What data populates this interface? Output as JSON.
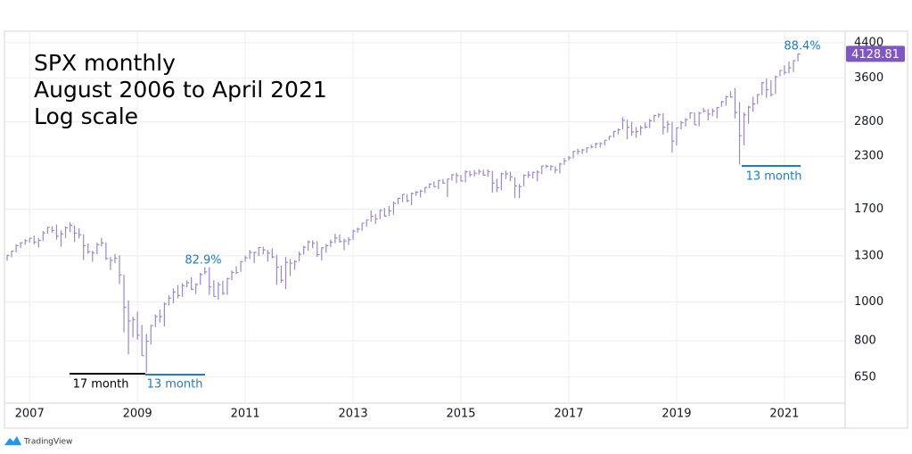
{
  "chart_data": {
    "type": "ohlc",
    "title_lines": [
      "SPX monthly",
      "August 2006 to April 2021",
      "Log scale"
    ],
    "categories": [
      "2006-08",
      "2006-09",
      "2006-10",
      "2006-11",
      "2006-12",
      "2007-01",
      "2007-02",
      "2007-03",
      "2007-04",
      "2007-05",
      "2007-06",
      "2007-07",
      "2007-08",
      "2007-09",
      "2007-10",
      "2007-11",
      "2007-12",
      "2008-01",
      "2008-02",
      "2008-03",
      "2008-04",
      "2008-05",
      "2008-06",
      "2008-07",
      "2008-08",
      "2008-09",
      "2008-10",
      "2008-11",
      "2008-12",
      "2009-01",
      "2009-02",
      "2009-03",
      "2009-04",
      "2009-05",
      "2009-06",
      "2009-07",
      "2009-08",
      "2009-09",
      "2009-10",
      "2009-11",
      "2009-12",
      "2010-01",
      "2010-02",
      "2010-03",
      "2010-04",
      "2010-05",
      "2010-06",
      "2010-07",
      "2010-08",
      "2010-09",
      "2010-10",
      "2010-11",
      "2010-12",
      "2011-01",
      "2011-02",
      "2011-03",
      "2011-04",
      "2011-05",
      "2011-06",
      "2011-07",
      "2011-08",
      "2011-09",
      "2011-10",
      "2011-11",
      "2011-12",
      "2012-01",
      "2012-02",
      "2012-03",
      "2012-04",
      "2012-05",
      "2012-06",
      "2012-07",
      "2012-08",
      "2012-09",
      "2012-10",
      "2012-11",
      "2012-12",
      "2013-01",
      "2013-02",
      "2013-03",
      "2013-04",
      "2013-05",
      "2013-06",
      "2013-07",
      "2013-08",
      "2013-09",
      "2013-10",
      "2013-11",
      "2013-12",
      "2014-01",
      "2014-02",
      "2014-03",
      "2014-04",
      "2014-05",
      "2014-06",
      "2014-07",
      "2014-08",
      "2014-09",
      "2014-10",
      "2014-11",
      "2014-12",
      "2015-01",
      "2015-02",
      "2015-03",
      "2015-04",
      "2015-05",
      "2015-06",
      "2015-07",
      "2015-08",
      "2015-09",
      "2015-10",
      "2015-11",
      "2015-12",
      "2016-01",
      "2016-02",
      "2016-03",
      "2016-04",
      "2016-05",
      "2016-06",
      "2016-07",
      "2016-08",
      "2016-09",
      "2016-10",
      "2016-11",
      "2016-12",
      "2017-01",
      "2017-02",
      "2017-03",
      "2017-04",
      "2017-05",
      "2017-06",
      "2017-07",
      "2017-08",
      "2017-09",
      "2017-10",
      "2017-11",
      "2017-12",
      "2018-01",
      "2018-02",
      "2018-03",
      "2018-04",
      "2018-05",
      "2018-06",
      "2018-07",
      "2018-08",
      "2018-09",
      "2018-10",
      "2018-11",
      "2018-12",
      "2019-01",
      "2019-02",
      "2019-03",
      "2019-04",
      "2019-05",
      "2019-06",
      "2019-07",
      "2019-08",
      "2019-09",
      "2019-10",
      "2019-11",
      "2019-12",
      "2020-01",
      "2020-02",
      "2020-03",
      "2020-04",
      "2020-05",
      "2020-06",
      "2020-07",
      "2020-08",
      "2020-09",
      "2020-10",
      "2020-11",
      "2020-12",
      "2021-01",
      "2021-02",
      "2021-03",
      "2021-04"
    ],
    "high": [
      1306,
      1340,
      1390,
      1407,
      1431,
      1441,
      1461,
      1438,
      1499,
      1535,
      1541,
      1556,
      1504,
      1539,
      1576,
      1549,
      1523,
      1471,
      1396,
      1340,
      1404,
      1441,
      1404,
      1292,
      1314,
      1305,
      1167,
      1007,
      918,
      944,
      876,
      832,
      876,
      930,
      956,
      997,
      1039,
      1080,
      1101,
      1113,
      1130,
      1150,
      1112,
      1180,
      1220,
      1219,
      1131,
      1120,
      1129,
      1148,
      1196,
      1227,
      1263,
      1303,
      1345,
      1332,
      1367,
      1371,
      1346,
      1357,
      1308,
      1230,
      1293,
      1278,
      1270,
      1334,
      1378,
      1420,
      1422,
      1415,
      1364,
      1392,
      1427,
      1475,
      1470,
      1434,
      1448,
      1510,
      1530,
      1570,
      1598,
      1687,
      1654,
      1698,
      1710,
      1730,
      1775,
      1813,
      1849,
      1851,
      1867,
      1884,
      1897,
      1925,
      1968,
      1991,
      2005,
      2019,
      2019,
      2076,
      2093,
      2064,
      2120,
      2118,
      2126,
      2135,
      2130,
      2133,
      2113,
      2021,
      2094,
      2117,
      2104,
      2038,
      1962,
      2073,
      2111,
      2103,
      2120,
      2178,
      2193,
      2188,
      2170,
      2214,
      2278,
      2301,
      2371,
      2401,
      2398,
      2418,
      2454,
      2484,
      2491,
      2519,
      2582,
      2657,
      2695,
      2873,
      2835,
      2801,
      2718,
      2742,
      2791,
      2848,
      2916,
      2941,
      2940,
      2815,
      2800,
      2708,
      2814,
      2861,
      2949,
      2954,
      2964,
      3028,
      3013,
      3021,
      3048,
      3154,
      3248,
      3337,
      3394,
      3136,
      2955,
      3068,
      3233,
      3280,
      3514,
      3588,
      3550,
      3646,
      3760,
      3870,
      3950,
      3983,
      4135
    ],
    "low": [
      1264,
      1290,
      1327,
      1360,
      1385,
      1403,
      1389,
      1364,
      1416,
      1476,
      1484,
      1427,
      1371,
      1439,
      1489,
      1407,
      1436,
      1270,
      1316,
      1257,
      1313,
      1373,
      1272,
      1200,
      1247,
      1106,
      840,
      741,
      815,
      805,
      735,
      667,
      783,
      866,
      888,
      869,
      979,
      992,
      1020,
      1029,
      1086,
      1071,
      1045,
      1101,
      1170,
      1040,
      1029,
      1011,
      1040,
      1040,
      1131,
      1173,
      1186,
      1257,
      1277,
      1249,
      1299,
      1311,
      1259,
      1283,
      1101,
      1115,
      1075,
      1159,
      1202,
      1259,
      1310,
      1340,
      1358,
      1292,
      1267,
      1325,
      1368,
      1397,
      1403,
      1343,
      1385,
      1426,
      1485,
      1501,
      1536,
      1581,
      1560,
      1604,
      1627,
      1633,
      1646,
      1746,
      1768,
      1768,
      1738,
      1834,
      1815,
      1862,
      1915,
      1930,
      1905,
      1964,
      1821,
      2001,
      1972,
      1988,
      1980,
      2040,
      2048,
      2067,
      2056,
      2045,
      1867,
      1872,
      1893,
      2019,
      1993,
      1812,
      1810,
      1937,
      2033,
      2025,
      1992,
      2074,
      2147,
      2120,
      2084,
      2084,
      2187,
      2245,
      2271,
      2322,
      2329,
      2345,
      2405,
      2407,
      2417,
      2446,
      2520,
      2557,
      2605,
      2682,
      2533,
      2585,
      2553,
      2594,
      2691,
      2699,
      2795,
      2864,
      2603,
      2631,
      2347,
      2444,
      2681,
      2722,
      2848,
      2751,
      2728,
      2952,
      2822,
      2892,
      2856,
      3050,
      3070,
      3214,
      2855,
      2192,
      2447,
      2767,
      2966,
      3101,
      3260,
      3209,
      3234,
      3280,
      3633,
      3663,
      3694,
      3723,
      3955
    ],
    "close": [
      1304,
      1336,
      1378,
      1401,
      1418,
      1438,
      1407,
      1421,
      1482,
      1531,
      1503,
      1455,
      1474,
      1527,
      1549,
      1481,
      1468,
      1379,
      1331,
      1323,
      1386,
      1400,
      1280,
      1267,
      1283,
      1166,
      969,
      896,
      903,
      826,
      735,
      798,
      873,
      919,
      919,
      987,
      1021,
      1057,
      1036,
      1096,
      1115,
      1074,
      1104,
      1169,
      1187,
      1089,
      1031,
      1102,
      1049,
      1141,
      1183,
      1181,
      1258,
      1286,
      1327,
      1326,
      1364,
      1345,
      1321,
      1292,
      1219,
      1131,
      1253,
      1247,
      1258,
      1312,
      1366,
      1408,
      1398,
      1310,
      1362,
      1379,
      1407,
      1441,
      1412,
      1416,
      1426,
      1498,
      1515,
      1569,
      1598,
      1631,
      1606,
      1686,
      1633,
      1682,
      1757,
      1806,
      1848,
      1783,
      1859,
      1872,
      1884,
      1924,
      1960,
      1931,
      2003,
      1972,
      2018,
      2068,
      2059,
      1995,
      2105,
      2068,
      2086,
      2107,
      2063,
      2104,
      1972,
      1920,
      2079,
      2080,
      2044,
      1940,
      1932,
      2060,
      2065,
      2097,
      2099,
      2174,
      2171,
      2168,
      2126,
      2199,
      2239,
      2279,
      2364,
      2363,
      2384,
      2412,
      2423,
      2470,
      2472,
      2519,
      2575,
      2648,
      2674,
      2824,
      2714,
      2641,
      2648,
      2705,
      2718,
      2816,
      2902,
      2914,
      2712,
      2760,
      2507,
      2704,
      2784,
      2834,
      2946,
      2752,
      2942,
      2980,
      2926,
      2977,
      3038,
      3141,
      3231,
      3226,
      2954,
      2585,
      2912,
      3044,
      3100,
      3271,
      3500,
      3363,
      3270,
      3622,
      3756,
      3714,
      3811,
      3973,
      4129
    ],
    "color": "#9b87cc",
    "last_price": 4128.81,
    "last_price_color": "#7e57c2",
    "log_scale": true,
    "ylim": [
      560,
      4700
    ],
    "yticks": [
      650,
      800,
      1000,
      1300,
      1700,
      2300,
      2800,
      3600,
      4400
    ],
    "xticks": [
      {
        "value": "2007-01",
        "label": "2007"
      },
      {
        "value": "2009-01",
        "label": "2009"
      },
      {
        "value": "2011-01",
        "label": "2011"
      },
      {
        "value": "2013-01",
        "label": "2013"
      },
      {
        "value": "2015-01",
        "label": "2015"
      },
      {
        "value": "2017-01",
        "label": "2017"
      },
      {
        "value": "2019-01",
        "label": "2019"
      },
      {
        "value": "2021-01",
        "label": "2021"
      }
    ],
    "grid": true,
    "annotations": [
      "88.4%",
      "82.9%",
      "13 month",
      "17 month",
      "13 month"
    ],
    "watermark": "TradingView"
  }
}
